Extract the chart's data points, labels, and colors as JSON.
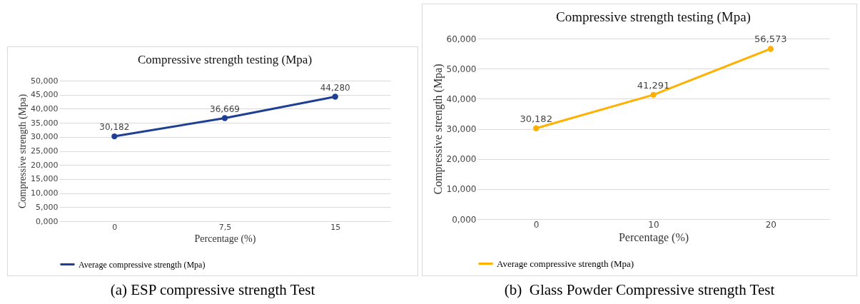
{
  "chart_data": [
    {
      "type": "line",
      "title": "Compressive strength testing (Mpa)",
      "xlabel": "Percentage (%)",
      "ylabel": "Compressive strength (Mpa)",
      "categories": [
        "0",
        "7,5",
        "15"
      ],
      "series": [
        {
          "name": "Average compressive strength (Mpa)",
          "color": "#1f3f95",
          "values": [
            30.182,
            36.669,
            44.28
          ],
          "value_labels": [
            "30,182",
            "36,669",
            "44,280"
          ]
        }
      ],
      "ylim": [
        0,
        50
      ],
      "yticks": [
        {
          "value": 0,
          "label": "0,000"
        },
        {
          "value": 5,
          "label": "5,000"
        },
        {
          "value": 10,
          "label": "10,000"
        },
        {
          "value": 15,
          "label": "15,000"
        },
        {
          "value": 20,
          "label": "20,000"
        },
        {
          "value": 25,
          "label": "25,000"
        },
        {
          "value": 30,
          "label": "30,000"
        },
        {
          "value": 35,
          "label": "35,000"
        },
        {
          "value": 40,
          "label": "40,000"
        },
        {
          "value": 45,
          "label": "45,000"
        },
        {
          "value": 50,
          "label": "50,000"
        }
      ],
      "grid": "y",
      "legend": "bottom",
      "marker": "circle",
      "annotations": [
        "(a) ESP compressive strength Test"
      ]
    },
    {
      "type": "line",
      "title": "Compressive strength testing (Mpa)",
      "xlabel": "Percentage (%)",
      "ylabel": "Compressive strength  (Mpa)",
      "categories": [
        "0",
        "10",
        "20"
      ],
      "series": [
        {
          "name": "Average compressive strength (Mpa)",
          "color": "#ffb000",
          "values": [
            30.182,
            41.291,
            56.573
          ],
          "value_labels": [
            "30,182",
            "41,291",
            "56,573"
          ]
        }
      ],
      "ylim": [
        0,
        60
      ],
      "yticks": [
        {
          "value": 0,
          "label": "0,000"
        },
        {
          "value": 10,
          "label": "10,000"
        },
        {
          "value": 20,
          "label": "20,000"
        },
        {
          "value": 30,
          "label": "30,000"
        },
        {
          "value": 40,
          "label": "40,000"
        },
        {
          "value": 50,
          "label": "50,000"
        },
        {
          "value": 60,
          "label": "60,000"
        }
      ],
      "grid": "y",
      "legend": "bottom",
      "marker": "circle",
      "annotations": [
        "(b)  Glass Powder Compressive strength Test"
      ]
    }
  ]
}
